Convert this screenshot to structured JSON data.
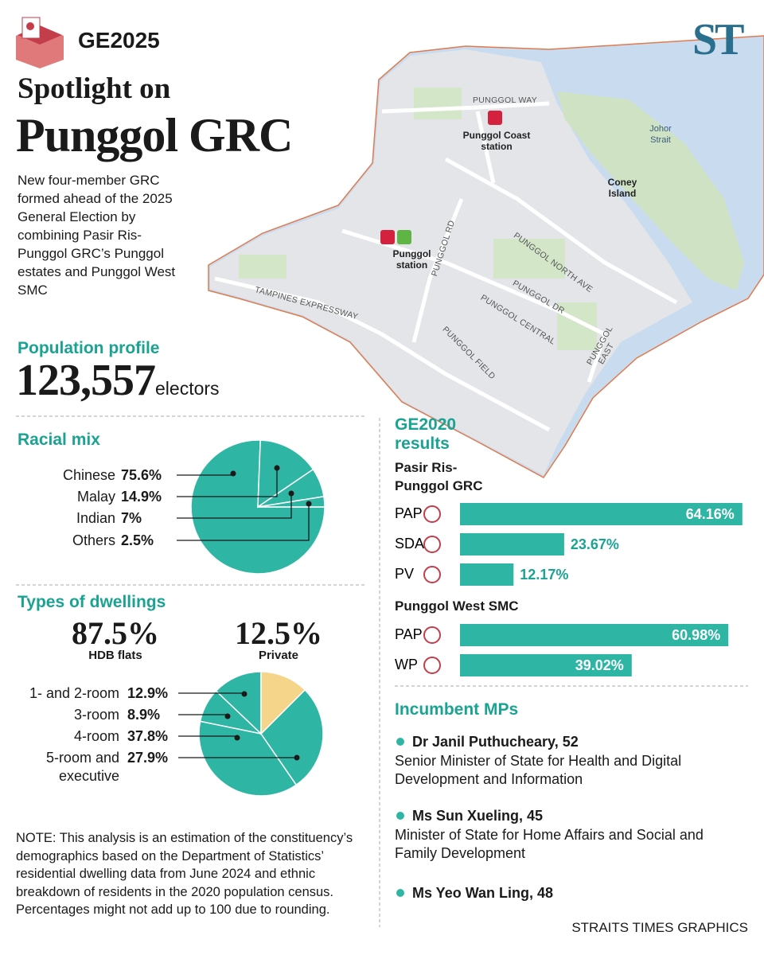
{
  "header": {
    "tag": "GE2025",
    "title_line1": "Spotlight on",
    "title_line2": "Punggol GRC",
    "logo": "ST",
    "intro": "New four-member GRC formed ahead of the 2025 General Election by combining Pasir Ris-Punggol GRC’s Punggol estates and Punggol West SMC"
  },
  "map": {
    "labels": [
      "PUNGGOL WAY",
      "Punggol Coast station",
      "Johor Strait",
      "Coney Island",
      "PUNGGOL NORTH AVE",
      "Punggol station",
      "PUNGGOL RD",
      "PUNGGOL DR",
      "PUNGGOL CENTRAL",
      "TAMPINES EXPRESSWAY",
      "PUNGGOL FIELD",
      "PUNGGOL EAST"
    ]
  },
  "population": {
    "heading": "Population profile",
    "number": "123,557",
    "unit": "electors"
  },
  "chart_data": [
    {
      "type": "pie",
      "title": "Racial mix",
      "categories": [
        "Chinese",
        "Malay",
        "Indian",
        "Others"
      ],
      "values": [
        75.6,
        14.9,
        7,
        2.5
      ],
      "value_labels": [
        "75.6%",
        "14.9%",
        "7%",
        "2.5%"
      ],
      "colors": [
        "#2fb5a3",
        "#2fb5a3",
        "#2fb5a3",
        "#2fb5a3"
      ]
    },
    {
      "type": "pie",
      "title": "Types of dwellings",
      "hdb_total": "87.5%",
      "hdb_label": "HDB flats",
      "categories": [
        "1- and 2-room",
        "3-room",
        "4-room",
        "5-room and executive",
        "Private"
      ],
      "values": [
        12.9,
        8.9,
        37.8,
        27.9,
        12.5
      ],
      "value_labels": [
        "12.9%",
        "8.9%",
        "37.8%",
        "27.9%",
        "12.5%"
      ],
      "colors": [
        "#2fb5a3",
        "#2fb5a3",
        "#2fb5a3",
        "#2fb5a3",
        "#f5d58a"
      ]
    },
    {
      "type": "bar",
      "title": "GE2020 results",
      "color": "#2fb5a3",
      "groups": [
        {
          "name": "Pasir Ris-Punggol GRC",
          "categories": [
            "PAP",
            "SDA",
            "PV"
          ],
          "values": [
            64.16,
            23.67,
            12.17
          ],
          "value_labels": [
            "64.16%",
            "23.67%",
            "12.17%"
          ]
        },
        {
          "name": "Punggol West SMC",
          "categories": [
            "PAP",
            "WP"
          ],
          "values": [
            60.98,
            39.02
          ],
          "value_labels": [
            "60.98%",
            "39.02%"
          ]
        }
      ]
    }
  ],
  "mps": {
    "heading": "Incumbent MPs",
    "items": [
      {
        "name": "Dr Janil Puthucheary, 52",
        "role": "Senior Minister of State for Health and Digital Development and Information"
      },
      {
        "name": "Ms Sun Xueling, 45",
        "role": "Minister of State for Home Affairs and Social and Family Development"
      },
      {
        "name": "Ms Yeo Wan Ling, 48"
      }
    ]
  },
  "note": "NOTE: This analysis is an estimation of the constituency’s demographics based on the Department of Statistics’ residential dwelling data from June 2024 and ethnic breakdown of residents in the 2020 population census. Percentages might not add up to 100 due to rounding.",
  "credit": "STRAITS TIMES GRAPHICS"
}
